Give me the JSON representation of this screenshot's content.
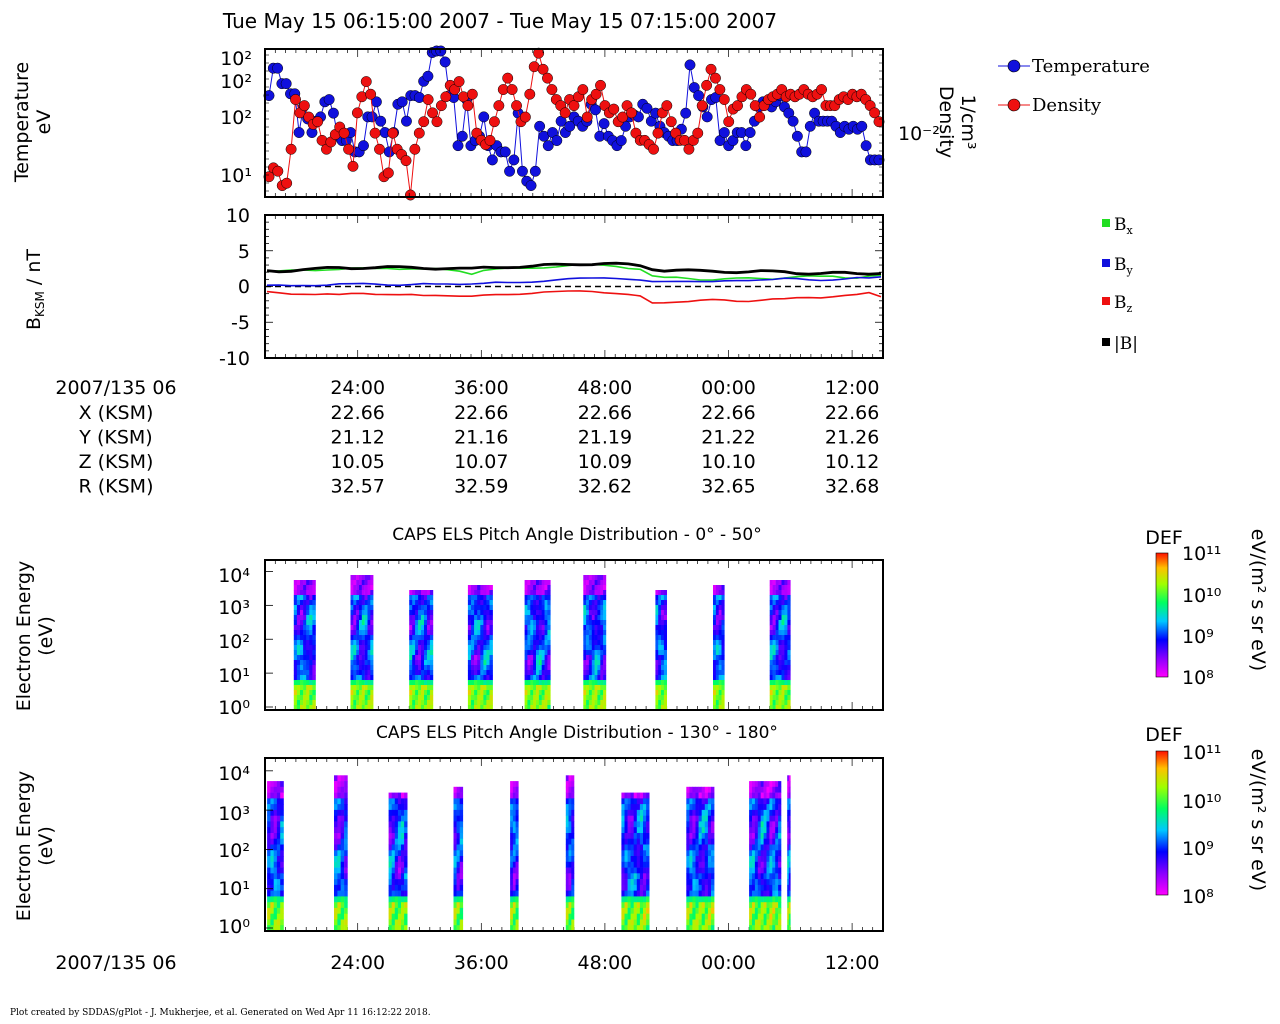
{
  "header": {
    "title": "Tue May 15 06:15:00 2007 - Tue May 15 07:15:00 2007"
  },
  "footer": {
    "credit": "Plot created by SDDAS/gPlot - J. Mukherjee, et al.  Generated on Wed Apr 11 16:12:22 2018."
  },
  "colors": {
    "temperature": "#1010dd",
    "density": "#ee1010",
    "bx": "#22dd22",
    "by": "#1010dd",
    "bz": "#ee1010",
    "btot": "#000000"
  },
  "chart_data": [
    {
      "type": "scatter",
      "name": "temperature-density",
      "ylabel_left": [
        "Temperature",
        "eV"
      ],
      "ylabel_right": [
        "Density",
        "1/cm³"
      ],
      "yticks_left": [
        "10²",
        "10²",
        "10²",
        "10¹"
      ],
      "yticks_right": [
        "10⁻²"
      ],
      "legend": [
        "Temperature",
        "Density"
      ],
      "legend_position": "top-right",
      "series": [
        {
          "name": "Temperature",
          "values": [
            150,
            400,
            400,
            230,
            230,
            160,
            160,
            40,
            100,
            65,
            40,
            60,
            70,
            120,
            130,
            80,
            35,
            30,
            30,
            40,
            20,
            20,
            25,
            70,
            70,
            120,
            60,
            40,
            20,
            40,
            110,
            120,
            60,
            150,
            150,
            140,
            250,
            300,
            700,
            1000,
            1000,
            500,
            150,
            140,
            25,
            35,
            130,
            25,
            30,
            35,
            70,
            25,
            15,
            25,
            20,
            20,
            10,
            15,
            80,
            10,
            7,
            6,
            10,
            50,
            35,
            25,
            40,
            30,
            60,
            40,
            50,
            70,
            60,
            50,
            60,
            110,
            90,
            35,
            55,
            35,
            30,
            25,
            30,
            50,
            70,
            75,
            70,
            110,
            95,
            60,
            80,
            50,
            40,
            35,
            30,
            30,
            45,
            80,
            450,
            200,
            150,
            100,
            70,
            130,
            140,
            30,
            40,
            25,
            30,
            40,
            40,
            25,
            40,
            60,
            100,
            120,
            120,
            100,
            120,
            150,
            100,
            80,
            60,
            35,
            20,
            20,
            50,
            80,
            60,
            60,
            60,
            60,
            50,
            40,
            50,
            45,
            50,
            45,
            50,
            25,
            15,
            15,
            15
          ]
        },
        {
          "name": "Density",
          "values": [
            0.002,
            0.0025,
            0.0023,
            0.0016,
            0.0017,
            0.004,
            0.014,
            0.01,
            0.012,
            0.009,
            0.0075,
            0.008,
            0.005,
            0.004,
            0.0048,
            0.0058,
            0.007,
            0.006,
            0.004,
            0.0026,
            0.01,
            0.015,
            0.022,
            0.016,
            0.006,
            0.004,
            0.002,
            0.0022,
            0.006,
            0.004,
            0.0035,
            0.003,
            0.0012,
            0.004,
            0.006,
            0.008,
            0.014,
            0.01,
            0.008,
            0.012,
            0.015,
            0.02,
            0.018,
            0.022,
            0.015,
            0.012,
            0.016,
            0.006,
            0.005,
            0.0045,
            0.005,
            0.008,
            0.012,
            0.018,
            0.024,
            0.018,
            0.012,
            0.008,
            0.009,
            0.016,
            0.032,
            0.045,
            0.03,
            0.024,
            0.018,
            0.014,
            0.012,
            0.01,
            0.014,
            0.012,
            0.015,
            0.018,
            0.009,
            0.014,
            0.016,
            0.02,
            0.012,
            0.01,
            0.011,
            0.008,
            0.009,
            0.012,
            0.01,
            0.006,
            0.005,
            0.005,
            0.0045,
            0.004,
            0.006,
            0.01,
            0.012,
            0.008,
            0.006,
            0.005,
            0.005,
            0.004,
            0.005,
            0.006,
            0.012,
            0.02,
            0.03,
            0.024,
            0.018,
            0.014,
            0.008,
            0.011,
            0.012,
            0.015,
            0.018,
            0.016,
            0.012,
            0.009,
            0.012,
            0.014,
            0.015,
            0.016,
            0.018,
            0.015,
            0.016,
            0.015,
            0.016,
            0.018,
            0.016,
            0.015,
            0.016,
            0.018,
            0.012,
            0.012,
            0.012,
            0.014,
            0.015,
            0.014,
            0.016,
            0.015,
            0.016,
            0.014,
            0.012,
            0.01,
            0.008
          ]
        }
      ]
    },
    {
      "type": "line",
      "name": "magnetic-field",
      "ylabel": "B",
      "ylabel_sub": "KSM",
      "ylabel_unit": " / nT",
      "ylim": [
        -10,
        10
      ],
      "yticks": [
        "10",
        "5",
        "0",
        "-5",
        "-10"
      ],
      "legend": [
        "B",
        "B",
        "B",
        "|B|"
      ],
      "legend_subs": [
        "x",
        "y",
        "z",
        ""
      ],
      "legend_position": "right",
      "series": [
        {
          "name": "Bx",
          "values": [
            2.1,
            2.1,
            2.2,
            2.3,
            2.3,
            2.4,
            2.4,
            2.5,
            2.5,
            2.5,
            2.6,
            2.5,
            2.5,
            2.4,
            2.4,
            2.3,
            2.2,
            1.8,
            2.3,
            2.4,
            2.5,
            2.5,
            2.6,
            2.7,
            2.8,
            2.9,
            3.0,
            3.0,
            3.0,
            2.9,
            2.6,
            2.4,
            1.4,
            1.2,
            1.3,
            1.2,
            1.0,
            0.9,
            1.0,
            1.1,
            1.2,
            1.2,
            1.1,
            1.2,
            1.3,
            1.4,
            1.4,
            1.5,
            1.3,
            1.2,
            1.4,
            1.5
          ]
        },
        {
          "name": "By",
          "values": [
            0.1,
            0.1,
            0.1,
            0.2,
            0.2,
            0.2,
            0.3,
            0.3,
            0.4,
            0.4,
            0.3,
            0.2,
            0.2,
            0.3,
            0.3,
            0.4,
            0.4,
            0.4,
            0.4,
            0.5,
            0.5,
            0.6,
            0.7,
            0.8,
            0.9,
            1.0,
            1.1,
            1.2,
            1.3,
            1.2,
            1.0,
            0.8,
            0.6,
            0.7,
            0.8,
            0.8,
            0.7,
            0.6,
            0.7,
            0.8,
            0.9,
            1.0,
            1.0,
            1.1,
            1.0,
            0.9,
            0.9,
            1.0,
            1.1,
            1.2,
            1.1,
            1.3
          ]
        },
        {
          "name": "Bz",
          "values": [
            -0.8,
            -0.9,
            -1.0,
            -1.0,
            -1.1,
            -1.1,
            -1.2,
            -1.0,
            -0.9,
            -1.0,
            -1.1,
            -1.2,
            -1.2,
            -1.3,
            -1.2,
            -1.2,
            -1.3,
            -1.4,
            -1.3,
            -1.2,
            -1.1,
            -1.0,
            -0.9,
            -0.8,
            -0.8,
            -0.7,
            -0.6,
            -0.6,
            -0.8,
            -1.0,
            -1.2,
            -1.4,
            -2.3,
            -2.2,
            -2.1,
            -2.1,
            -2.0,
            -1.9,
            -1.9,
            -2.0,
            -2.0,
            -1.9,
            -1.8,
            -1.8,
            -1.6,
            -1.5,
            -1.5,
            -1.4,
            -1.3,
            -1.2,
            -0.9,
            -1.4
          ]
        },
        {
          "name": "|B|",
          "values": [
            2.2,
            2.2,
            2.3,
            2.4,
            2.4,
            2.5,
            2.6,
            2.6,
            2.7,
            2.7,
            2.7,
            2.6,
            2.6,
            2.6,
            2.6,
            2.6,
            2.5,
            2.4,
            2.6,
            2.7,
            2.8,
            2.8,
            2.8,
            2.9,
            3.0,
            3.1,
            3.2,
            3.2,
            3.2,
            3.1,
            3.0,
            2.9,
            2.5,
            2.3,
            2.3,
            2.2,
            2.1,
            2.1,
            2.1,
            2.1,
            2.1,
            2.1,
            2.0,
            2.0,
            1.9,
            1.9,
            1.9,
            1.9,
            1.8,
            1.7,
            1.8,
            2.0
          ]
        },
        {
          "name": "zero",
          "values": [
            0,
            0
          ]
        }
      ]
    },
    {
      "type": "heatmap",
      "name": "caps-els-0-50",
      "title": "CAPS ELS Pitch Angle Distribution - 0° - 50°",
      "ylabel": [
        "Electron Energy",
        "(eV)"
      ],
      "yticks": [
        "10⁴",
        "10³",
        "10²",
        "10¹",
        "10⁰"
      ],
      "colorbar": {
        "title": "DEF",
        "unit": "eV/(m² s sr eV)",
        "ticks": [
          "10¹¹",
          "10¹⁰",
          "10⁹",
          "10⁸"
        ]
      },
      "bursts": [
        [
          2.8,
          4.9
        ],
        [
          8.3,
          10.5
        ],
        [
          14.0,
          16.3
        ],
        [
          19.7,
          22.1
        ],
        [
          25.2,
          27.7
        ],
        [
          30.9,
          33.1
        ],
        [
          37.9,
          39.0
        ],
        [
          43.5,
          44.6
        ],
        [
          49.0,
          51.0
        ]
      ]
    },
    {
      "type": "heatmap",
      "name": "caps-els-130-180",
      "title": "CAPS ELS Pitch Angle Distribution - 130° - 180°",
      "ylabel": [
        "Electron Energy",
        "(eV)"
      ],
      "yticks": [
        "10⁴",
        "10³",
        "10²",
        "10¹",
        "10⁰"
      ],
      "colorbar": {
        "title": "DEF",
        "unit": "eV/(m² s sr eV)",
        "ticks": [
          "10¹¹",
          "10¹⁰",
          "10⁹",
          "10⁸"
        ]
      },
      "bursts": [
        [
          0.2,
          1.8
        ],
        [
          6.7,
          8.0
        ],
        [
          12.0,
          13.8
        ],
        [
          18.3,
          19.2
        ],
        [
          23.8,
          24.6
        ],
        [
          29.2,
          30.0
        ],
        [
          34.6,
          37.3
        ],
        [
          40.9,
          43.6
        ],
        [
          47.0,
          50.1
        ],
        [
          50.7,
          51.0
        ]
      ]
    }
  ],
  "x_axis": {
    "start_label": "2007/135 06",
    "tick_minutes": [
      9,
      21,
      33,
      45,
      57
    ],
    "ticks": [
      "24:00",
      "36:00",
      "48:00",
      "00:00",
      "12:00"
    ],
    "rows": [
      {
        "label": "X (KSM)",
        "values": [
          "22.66",
          "22.66",
          "22.66",
          "22.66",
          "22.66"
        ]
      },
      {
        "label": "Y (KSM)",
        "values": [
          "21.12",
          "21.16",
          "21.19",
          "21.22",
          "21.26"
        ]
      },
      {
        "label": "Z (KSM)",
        "values": [
          "10.05",
          "10.07",
          "10.09",
          "10.10",
          "10.12"
        ]
      },
      {
        "label": "R (KSM)",
        "values": [
          "32.57",
          "32.59",
          "32.62",
          "32.65",
          "32.68"
        ]
      }
    ],
    "bottom_start_label": "2007/135 06"
  }
}
